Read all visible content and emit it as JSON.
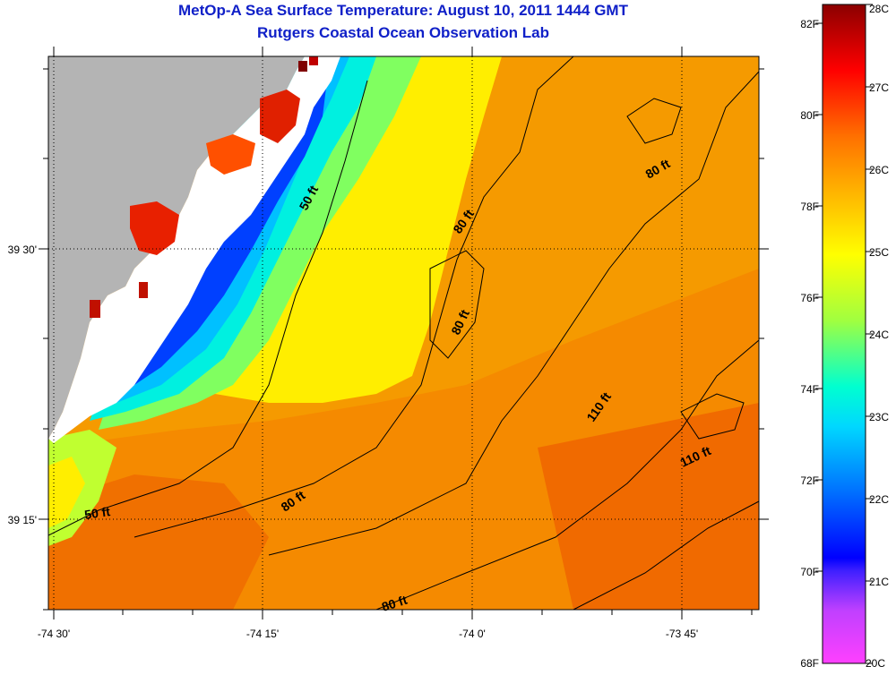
{
  "title": "MetOp-A Sea Surface Temperature:  August 10, 2011 1444 GMT",
  "subtitle": "Rutgers Coastal Ocean Observation Lab",
  "axes": {
    "lon_ticks": [
      "-74 30'",
      "-74 15'",
      "-74 0'",
      "-73 45'"
    ],
    "lat_ticks": [
      "39 30'",
      "39 15'"
    ]
  },
  "contours": [
    "50 ft",
    "50 ft",
    "80 ft",
    "80 ft",
    "80 ft",
    "80 ft",
    "80 ft",
    "110 ft",
    "110 ft"
  ],
  "colorbar": {
    "fahrenheit": [
      "82F",
      "80F",
      "78F",
      "76F",
      "74F",
      "72F",
      "70F",
      "68F"
    ],
    "celsius": [
      "28C",
      "27C",
      "26C",
      "25C",
      "24C",
      "23C",
      "22C",
      "21C",
      "20C"
    ],
    "colors": [
      "#ff40ff",
      "#8a2be2",
      "#0000ff",
      "#00aaff",
      "#00ffff",
      "#7fff7f",
      "#ffff00",
      "#ffaa00",
      "#ff6600",
      "#ff0000",
      "#8b0000"
    ]
  },
  "colors": {
    "land": "#b4b4b4",
    "title": "#1020c8"
  }
}
